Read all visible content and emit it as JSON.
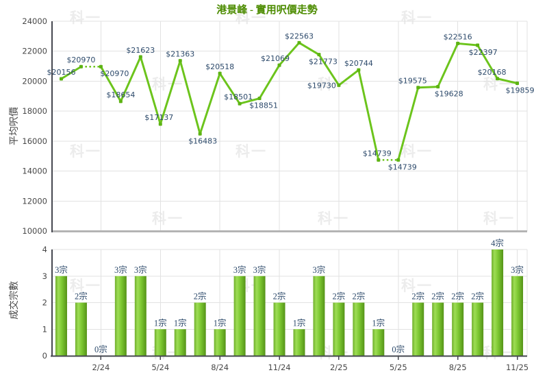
{
  "title": "港景峰 - 實用呎價走勢",
  "watermark": "科一",
  "colors": {
    "line_green": "#6cc41c",
    "marker_green": "#5db313",
    "bar_edge_green": "#559318",
    "bar_light_green": "#9edd55",
    "title_green": "#4d8c02",
    "label_navy": "#2d4a6b",
    "tick_gray": "#474747",
    "axis_dark": "#45474f",
    "axis_light": "#b4b4b4",
    "grid": "#e2e2e2"
  },
  "chart_data": [
    {
      "type": "line",
      "name": "average-price-per-sqft",
      "title": "港景峰 - 實用呎價走勢",
      "ylabel": "平均呎價",
      "ylim": [
        10000,
        24000
      ],
      "y_ticks": [
        10000,
        12000,
        14000,
        16000,
        18000,
        20000,
        22000,
        24000
      ],
      "values": [
        20156,
        20970,
        20970,
        18654,
        21623,
        17137,
        21363,
        16483,
        20518,
        18501,
        18851,
        21069,
        22563,
        21773,
        19730,
        20744,
        14739,
        14739,
        19575,
        19628,
        22516,
        22397,
        20168,
        19859
      ],
      "point_labels": [
        "$20156",
        "$20970",
        "$20970",
        "$18654",
        "$21623",
        "$17137",
        "$21363",
        "$16483",
        "$20518",
        "$18501",
        "$18851",
        "$21069",
        "$22563",
        "$21773",
        "$19730",
        "$20744",
        "$14739",
        "$14739",
        "$19575",
        "$19628",
        "$22516",
        "$22397",
        "$20168",
        "$19859"
      ],
      "dotted_segments": [
        [
          1,
          2
        ],
        [
          16,
          17
        ]
      ],
      "x_ticks": {
        "indices": [
          2,
          5,
          8,
          11,
          14,
          17,
          20,
          23
        ],
        "labels": [
          "2/24",
          "5/24",
          "8/24",
          "11/24",
          "2/25",
          "5/25",
          "8/25",
          "11/25"
        ]
      },
      "grid": true,
      "legend": "none"
    },
    {
      "type": "bar",
      "name": "transaction-count",
      "ylabel": "成交宗數",
      "ylim": [
        0,
        4
      ],
      "y_ticks": [
        0,
        1,
        2,
        3,
        4
      ],
      "values": [
        3,
        2,
        0,
        3,
        3,
        1,
        1,
        2,
        1,
        3,
        3,
        2,
        1,
        3,
        2,
        2,
        1,
        0,
        2,
        2,
        2,
        2,
        4,
        3
      ],
      "bar_labels": [
        "3宗",
        "2宗",
        "0宗",
        "3宗",
        "3宗",
        "1宗",
        "1宗",
        "2宗",
        "1宗",
        "3宗",
        "3宗",
        "2宗",
        "1宗",
        "3宗",
        "2宗",
        "2宗",
        "1宗",
        "0宗",
        "2宗",
        "2宗",
        "2宗",
        "2宗",
        "4宗",
        "3宗"
      ],
      "x_ticks": {
        "indices": [
          2,
          5,
          8,
          11,
          14,
          17,
          20,
          23
        ],
        "labels": [
          "2/24",
          "5/24",
          "8/24",
          "11/24",
          "2/25",
          "5/25",
          "8/25",
          "11/25"
        ]
      },
      "grid": true,
      "legend": "none"
    }
  ]
}
